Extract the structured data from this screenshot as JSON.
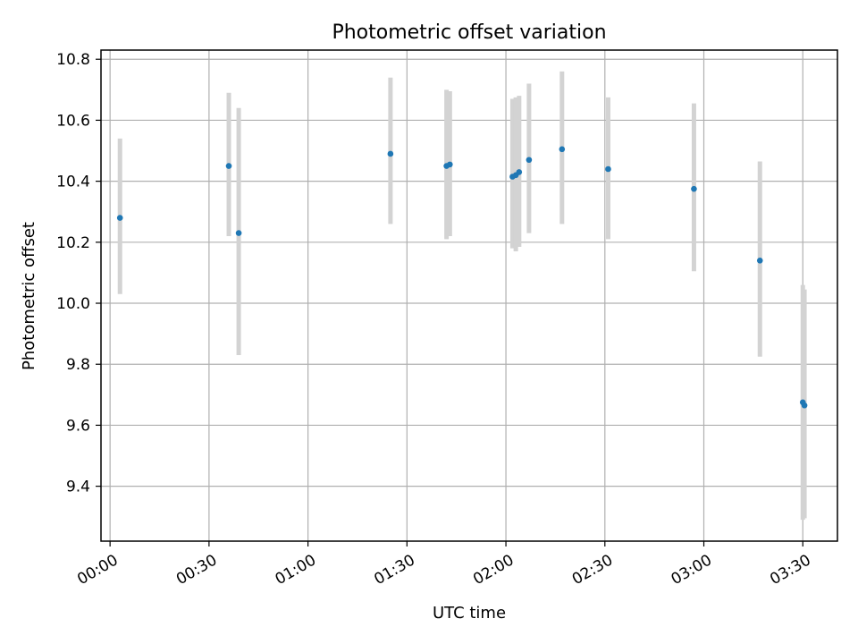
{
  "chart_data": {
    "type": "scatter",
    "title": "Photometric offset variation",
    "xlabel": "UTC time",
    "ylabel": "Photometric offset",
    "x_ticks": [
      "00:00",
      "00:30",
      "01:00",
      "01:30",
      "02:00",
      "02:30",
      "03:00",
      "03:30"
    ],
    "y_ticks": [
      "9.4",
      "9.6",
      "9.8",
      "10.0",
      "10.2",
      "10.4",
      "10.6",
      "10.8"
    ],
    "xlim": [
      "23:57:15",
      "03:40:30"
    ],
    "ylim": [
      9.22,
      10.83
    ],
    "grid": true,
    "point_color": "#1f77b4",
    "errorbar_color": "#d3d3d3",
    "points": [
      {
        "time": "00:03",
        "y": 10.28,
        "lo": 10.03,
        "hi": 10.54
      },
      {
        "time": "00:36",
        "y": 10.45,
        "lo": 10.22,
        "hi": 10.69
      },
      {
        "time": "00:39",
        "y": 10.23,
        "lo": 9.83,
        "hi": 10.64
      },
      {
        "time": "01:25",
        "y": 10.49,
        "lo": 10.26,
        "hi": 10.74
      },
      {
        "time": "01:42",
        "y": 10.45,
        "lo": 10.21,
        "hi": 10.7
      },
      {
        "time": "01:43",
        "y": 10.455,
        "lo": 10.22,
        "hi": 10.695
      },
      {
        "time": "02:02",
        "y": 10.415,
        "lo": 10.18,
        "hi": 10.67
      },
      {
        "time": "02:03",
        "y": 10.42,
        "lo": 10.17,
        "hi": 10.675
      },
      {
        "time": "02:04",
        "y": 10.43,
        "lo": 10.185,
        "hi": 10.68
      },
      {
        "time": "02:07",
        "y": 10.47,
        "lo": 10.23,
        "hi": 10.72
      },
      {
        "time": "02:17",
        "y": 10.505,
        "lo": 10.26,
        "hi": 10.76
      },
      {
        "time": "02:31",
        "y": 10.44,
        "lo": 10.21,
        "hi": 10.675
      },
      {
        "time": "02:57",
        "y": 10.375,
        "lo": 10.105,
        "hi": 10.655
      },
      {
        "time": "03:17",
        "y": 10.14,
        "lo": 9.825,
        "hi": 10.465
      },
      {
        "time": "03:30",
        "y": 9.675,
        "lo": 9.29,
        "hi": 10.06
      },
      {
        "time": "03:30:30",
        "y": 9.665,
        "lo": 9.295,
        "hi": 10.045
      }
    ]
  }
}
